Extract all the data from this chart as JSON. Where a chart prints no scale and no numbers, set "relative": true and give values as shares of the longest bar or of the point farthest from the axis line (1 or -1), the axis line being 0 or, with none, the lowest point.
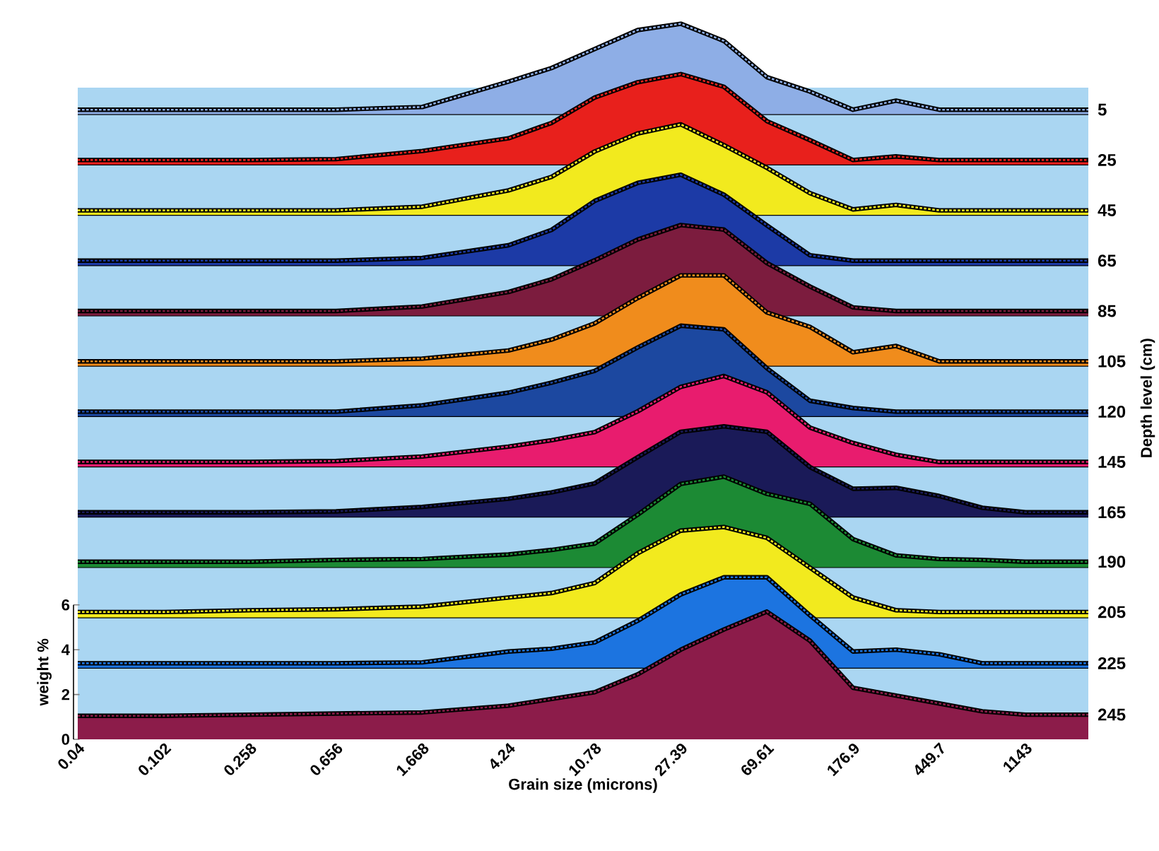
{
  "chart_data": [
    {
      "type": "area",
      "relative": true,
      "log": "x",
      "xlim": [
        0.04,
        2260
      ],
      "x": [
        0.04,
        0.102,
        0.258,
        0.656,
        1.668,
        4.24,
        6.76,
        10.78,
        17.2,
        27.39,
        43.7,
        69.61,
        111,
        176.9,
        282,
        449.7,
        717,
        1143,
        2260
      ],
      "series": [
        {
          "name": "5",
          "color": "#8eaee6",
          "values": [
            0.05,
            0.05,
            0.05,
            0.05,
            0.08,
            0.36,
            0.51,
            0.72,
            0.93,
            1,
            0.81,
            0.41,
            0.25,
            0.05,
            0.15,
            0.05,
            0.05,
            0.05,
            0.05
          ]
        }
      ]
    },
    {
      "type": "area",
      "relative": true,
      "log": "x",
      "xlim": [
        0.04,
        2260
      ],
      "x": [
        0.04,
        0.102,
        0.258,
        0.656,
        1.668,
        4.24,
        6.76,
        10.78,
        17.2,
        27.39,
        43.7,
        69.61,
        111,
        176.9,
        282,
        449.7,
        717,
        1143,
        2260
      ],
      "series": [
        {
          "name": "25",
          "color": "#e8201c",
          "values": [
            0.05,
            0.05,
            0.05,
            0.06,
            0.15,
            0.29,
            0.46,
            0.74,
            0.91,
            1,
            0.86,
            0.48,
            0.27,
            0.05,
            0.09,
            0.05,
            0.05,
            0.05,
            0.05
          ]
        }
      ]
    },
    {
      "type": "area",
      "relative": true,
      "log": "x",
      "xlim": [
        0.04,
        2260
      ],
      "x": [
        0.04,
        0.102,
        0.258,
        0.656,
        1.668,
        4.24,
        6.76,
        10.78,
        17.2,
        27.39,
        43.7,
        69.61,
        111,
        176.9,
        282,
        449.7,
        717,
        1143,
        2260
      ],
      "series": [
        {
          "name": "45",
          "color": "#f2ea1e",
          "values": [
            0.05,
            0.05,
            0.05,
            0.05,
            0.09,
            0.27,
            0.42,
            0.7,
            0.9,
            1,
            0.77,
            0.52,
            0.24,
            0.06,
            0.11,
            0.05,
            0.05,
            0.05,
            0.05
          ]
        }
      ]
    },
    {
      "type": "area",
      "relative": true,
      "log": "x",
      "xlim": [
        0.04,
        2260
      ],
      "x": [
        0.04,
        0.102,
        0.258,
        0.656,
        1.668,
        4.24,
        6.76,
        10.78,
        17.2,
        27.39,
        43.7,
        69.61,
        111,
        176.9,
        282,
        449.7,
        717,
        1143,
        2260
      ],
      "series": [
        {
          "name": "65",
          "color": "#1c3aa6",
          "values": [
            0.05,
            0.05,
            0.05,
            0.05,
            0.08,
            0.22,
            0.39,
            0.71,
            0.91,
            1,
            0.78,
            0.44,
            0.11,
            0.05,
            0.05,
            0.05,
            0.05,
            0.05,
            0.05
          ]
        }
      ]
    },
    {
      "type": "area",
      "relative": true,
      "log": "x",
      "xlim": [
        0.04,
        2260
      ],
      "x": [
        0.04,
        0.102,
        0.258,
        0.656,
        1.668,
        4.24,
        6.76,
        10.78,
        17.2,
        27.39,
        43.7,
        69.61,
        111,
        176.9,
        282,
        449.7,
        717,
        1143,
        2260
      ],
      "series": [
        {
          "name": "85",
          "color": "#7c1c3e",
          "values": [
            0.05,
            0.05,
            0.05,
            0.05,
            0.1,
            0.26,
            0.4,
            0.61,
            0.84,
            1,
            0.95,
            0.58,
            0.32,
            0.09,
            0.05,
            0.05,
            0.05,
            0.05,
            0.05
          ]
        }
      ]
    },
    {
      "type": "area",
      "relative": true,
      "log": "x",
      "xlim": [
        0.04,
        2260
      ],
      "x": [
        0.04,
        0.102,
        0.258,
        0.656,
        1.668,
        4.24,
        6.76,
        10.78,
        17.2,
        27.39,
        43.7,
        69.61,
        111,
        176.9,
        282,
        449.7,
        717,
        1143,
        2260
      ],
      "series": [
        {
          "name": "105",
          "color": "#f08c1c",
          "values": [
            0.05,
            0.05,
            0.05,
            0.05,
            0.08,
            0.17,
            0.29,
            0.47,
            0.75,
            1,
            1,
            0.59,
            0.43,
            0.15,
            0.22,
            0.05,
            0.05,
            0.05,
            0.05
          ]
        }
      ]
    },
    {
      "type": "area",
      "relative": true,
      "log": "x",
      "xlim": [
        0.04,
        2260
      ],
      "y2label": "Depth level (cm)",
      "x": [
        0.04,
        0.102,
        0.258,
        0.656,
        1.668,
        4.24,
        6.76,
        10.78,
        17.2,
        27.39,
        43.7,
        69.61,
        111,
        176.9,
        282,
        449.7,
        717,
        1143,
        2260
      ],
      "series": [
        {
          "name": "120",
          "color": "#1c48a0",
          "values": [
            0.05,
            0.05,
            0.05,
            0.05,
            0.12,
            0.26,
            0.37,
            0.5,
            0.76,
            1,
            0.96,
            0.53,
            0.17,
            0.09,
            0.05,
            0.05,
            0.05,
            0.05,
            0.05
          ]
        }
      ]
    },
    {
      "type": "area",
      "relative": true,
      "log": "x",
      "xlim": [
        0.04,
        2260
      ],
      "x": [
        0.04,
        0.102,
        0.258,
        0.656,
        1.668,
        4.24,
        6.76,
        10.78,
        17.2,
        27.39,
        43.7,
        69.61,
        111,
        176.9,
        282,
        449.7,
        717,
        1143,
        2260
      ],
      "series": [
        {
          "name": "145",
          "color": "#e81c6e",
          "values": [
            0.05,
            0.05,
            0.05,
            0.06,
            0.11,
            0.22,
            0.29,
            0.38,
            0.61,
            0.88,
            1,
            0.82,
            0.43,
            0.26,
            0.13,
            0.05,
            0.05,
            0.05,
            0.05
          ]
        }
      ]
    },
    {
      "type": "area",
      "relative": true,
      "log": "x",
      "xlim": [
        0.04,
        2260
      ],
      "x": [
        0.04,
        0.102,
        0.258,
        0.656,
        1.668,
        4.24,
        6.76,
        10.78,
        17.2,
        27.39,
        43.7,
        69.61,
        111,
        176.9,
        282,
        449.7,
        717,
        1143,
        2260
      ],
      "series": [
        {
          "name": "165",
          "color": "#1a1a58",
          "values": [
            0.05,
            0.05,
            0.05,
            0.06,
            0.11,
            0.2,
            0.27,
            0.37,
            0.66,
            0.94,
            1,
            0.94,
            0.55,
            0.31,
            0.32,
            0.23,
            0.1,
            0.05,
            0.05
          ]
        }
      ]
    },
    {
      "type": "area",
      "relative": true,
      "log": "x",
      "xlim": [
        0.04,
        2260
      ],
      "x": [
        0.04,
        0.102,
        0.258,
        0.656,
        1.668,
        4.24,
        6.76,
        10.78,
        17.2,
        27.39,
        43.7,
        69.61,
        111,
        176.9,
        282,
        449.7,
        717,
        1143,
        2260
      ],
      "series": [
        {
          "name": "190",
          "color": "#1c8a34",
          "values": [
            0.06,
            0.06,
            0.06,
            0.08,
            0.09,
            0.14,
            0.19,
            0.26,
            0.58,
            0.92,
            1,
            0.81,
            0.7,
            0.31,
            0.13,
            0.09,
            0.08,
            0.06,
            0.06
          ]
        }
      ]
    },
    {
      "type": "area",
      "relative": true,
      "log": "x",
      "xlim": [
        0.04,
        2260
      ],
      "x": [
        0.04,
        0.102,
        0.258,
        0.656,
        1.668,
        4.24,
        6.76,
        10.78,
        17.2,
        27.39,
        43.7,
        69.61,
        111,
        176.9,
        282,
        449.7,
        717,
        1143,
        2260
      ],
      "series": [
        {
          "name": "205",
          "color": "#f2ea1e",
          "values": [
            0.06,
            0.06,
            0.08,
            0.09,
            0.12,
            0.22,
            0.27,
            0.38,
            0.71,
            0.96,
            1,
            0.88,
            0.55,
            0.22,
            0.08,
            0.06,
            0.06,
            0.06,
            0.06
          ]
        }
      ]
    },
    {
      "type": "area",
      "relative": true,
      "log": "x",
      "xlim": [
        0.04,
        2260
      ],
      "x": [
        0.04,
        0.102,
        0.258,
        0.656,
        1.668,
        4.24,
        6.76,
        10.78,
        17.2,
        27.39,
        43.7,
        69.61,
        111,
        176.9,
        282,
        449.7,
        717,
        1143,
        2260
      ],
      "series": [
        {
          "name": "225",
          "color": "#1c74e0",
          "values": [
            0.05,
            0.05,
            0.05,
            0.05,
            0.06,
            0.18,
            0.21,
            0.28,
            0.52,
            0.81,
            1,
            1,
            0.58,
            0.18,
            0.2,
            0.15,
            0.05,
            0.05,
            0.05
          ]
        }
      ]
    },
    {
      "type": "area",
      "log": "x",
      "xlim": [
        0.04,
        2260
      ],
      "ylim": [
        0,
        6
      ],
      "yticks": [
        0,
        2,
        4,
        6
      ],
      "xticks": [
        0.04,
        0.102,
        0.258,
        0.656,
        1.668,
        4.24,
        10.78,
        27.39,
        69.61,
        176.9,
        449.7,
        1143
      ],
      "xlabel": "Grain size (microns)",
      "ylabel": "weight %",
      "x": [
        0.04,
        0.102,
        0.258,
        0.656,
        1.668,
        4.24,
        6.76,
        10.78,
        17.2,
        27.39,
        43.7,
        69.61,
        111,
        176.9,
        282,
        449.7,
        717,
        1143,
        2260
      ],
      "series": [
        {
          "name": "245",
          "color": "#8c1c4a",
          "values": [
            1.05,
            1.05,
            1.1,
            1.15,
            1.2,
            1.5,
            1.8,
            2.1,
            2.9,
            4.0,
            4.9,
            5.7,
            4.4,
            2.3,
            1.95,
            1.6,
            1.25,
            1.1,
            1.1
          ]
        }
      ]
    }
  ]
}
